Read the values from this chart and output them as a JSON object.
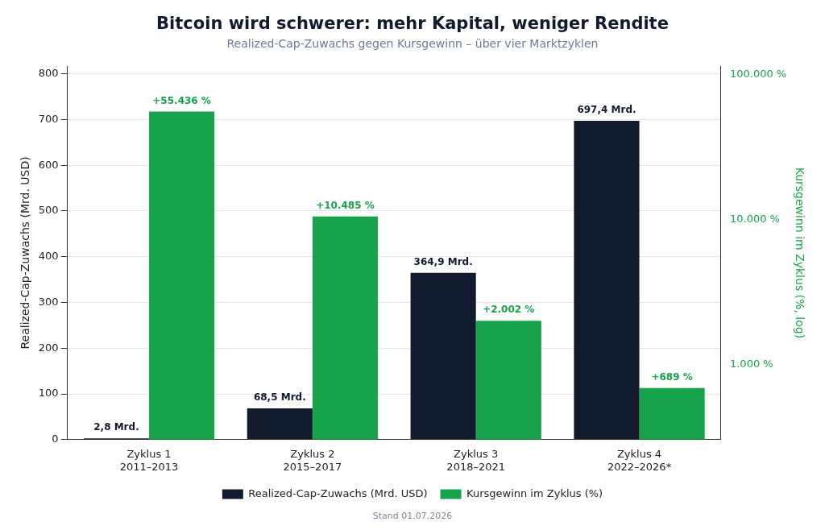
{
  "chart_data": {
    "type": "bar",
    "title": "Bitcoin wird schwerer: mehr Kapital, weniger Rendite",
    "subtitle": "Realized-Cap-Zuwachs gegen Kursgewinn – über vier Marktzyklen",
    "ylabel": "Realized-Cap-Zuwachs (Mrd. USD)",
    "y2label": "Kursgewinn im Zyklus (%, log)",
    "categories": [
      "Zyklus 1\n2011–2013",
      "Zyklus 2\n2015–2017",
      "Zyklus 3\n2018–2021",
      "Zyklus 4\n2022–2026*"
    ],
    "series": [
      {
        "name": "Realized-Cap-Zuwachs (Mrd. USD)",
        "color": "#121a2e",
        "values": [
          2.8,
          68.5,
          364.9,
          697.4
        ],
        "value_labels": [
          "2,8 Mrd.",
          "68,5 Mrd.",
          "364,9 Mrd.",
          "697,4 Mrd."
        ]
      },
      {
        "name": "Kursgewinn im Zyklus (%)",
        "color": "#16a34a",
        "axis": "y2",
        "values": [
          55436,
          10485,
          2002,
          689
        ],
        "value_labels": [
          "+55.436 %",
          "+10.485 %",
          "+2.002 %",
          "+689 %"
        ]
      }
    ],
    "ylim": [
      0,
      817
    ],
    "yticks": [
      0,
      100,
      200,
      300,
      400,
      500,
      600,
      700,
      800
    ],
    "y2lim": [
      304,
      114000
    ],
    "y2ticks": [
      {
        "value": 1000,
        "label": "1.000 %"
      },
      {
        "value": 10000,
        "label": "10.000 %"
      },
      {
        "value": 100000,
        "label": "100.000 %"
      }
    ],
    "log": "y2",
    "grid": "y",
    "legend": "bottom",
    "annotations": [
      "Stand 01.07.2026"
    ]
  }
}
